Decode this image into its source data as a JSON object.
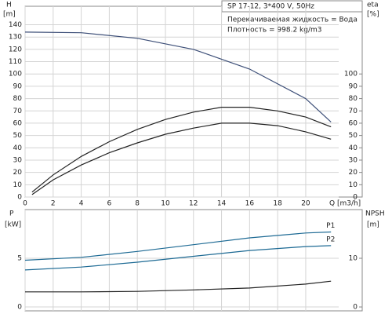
{
  "chart_data": [
    {
      "type": "line",
      "box_title": "SP 17-12, 3*400 V, 50Hz",
      "notes": [
        "Перекачиваемая жидкость = Вода",
        "Плотность = 998.2 kg/m3"
      ],
      "y_label": "H",
      "y_unit": "[m]",
      "y2_label": "eta",
      "y2_unit": "[%]",
      "x_label": "Q [m3/h]",
      "xlim": [
        0,
        22.35
      ],
      "xticks": [
        0,
        2,
        4,
        6,
        8,
        10,
        12,
        14,
        16,
        18,
        20
      ],
      "ylim": [
        0,
        155
      ],
      "yticks": [
        0,
        10,
        20,
        30,
        40,
        50,
        60,
        70,
        80,
        90,
        100,
        110,
        120,
        130,
        140
      ],
      "y2lim": [
        0,
        155
      ],
      "y2ticks": [
        0,
        10,
        20,
        30,
        40,
        50,
        60,
        70,
        80,
        90,
        100
      ],
      "grid": true,
      "series": [
        {
          "color": "#3d4f78",
          "x": [
            0,
            4,
            8,
            12,
            16,
            20,
            21.8
          ],
          "values": [
            134,
            133.5,
            129,
            120,
            104,
            80,
            61
          ]
        },
        {
          "color": "#222222",
          "axis": "y2",
          "x": [
            0.5,
            2,
            4,
            6,
            8,
            10,
            12,
            14,
            16,
            18,
            20,
            21.8
          ],
          "values": [
            4,
            18,
            33,
            45,
            55,
            63,
            69,
            73,
            73,
            70,
            65,
            57
          ]
        },
        {
          "color": "#222222",
          "axis": "y2",
          "x": [
            0.5,
            2,
            4,
            6,
            8,
            10,
            12,
            14,
            16,
            18,
            20,
            21.8
          ],
          "values": [
            2,
            14,
            26,
            36,
            44,
            51,
            56,
            60,
            60,
            58,
            53,
            47
          ]
        }
      ]
    },
    {
      "type": "line",
      "y_label": "P",
      "y_unit": "[kW]",
      "y2_label": "NPSH",
      "y2_unit": "[m]",
      "xlim": [
        0,
        22.35
      ],
      "ylim": [
        -0.4,
        10
      ],
      "yticks": [
        0,
        5
      ],
      "y2lim": [
        -0.8,
        20
      ],
      "y2ticks": [
        0,
        10
      ],
      "grid": true,
      "series": [
        {
          "name": "P1",
          "color": "#1d6a94",
          "x": [
            0,
            4,
            8,
            12,
            16,
            20,
            21.8
          ],
          "values": [
            4.8,
            5.1,
            5.7,
            6.4,
            7.1,
            7.6,
            7.7
          ]
        },
        {
          "name": "P2",
          "color": "#1d6a94",
          "x": [
            0,
            4,
            8,
            12,
            16,
            20,
            21.8
          ],
          "values": [
            3.8,
            4.1,
            4.6,
            5.2,
            5.8,
            6.2,
            6.3
          ]
        },
        {
          "color": "#222222",
          "axis": "y2",
          "x": [
            0,
            4,
            8,
            12,
            16,
            20,
            21.8
          ],
          "values": [
            3.1,
            3.1,
            3.2,
            3.5,
            3.9,
            4.7,
            5.3
          ]
        }
      ]
    }
  ]
}
